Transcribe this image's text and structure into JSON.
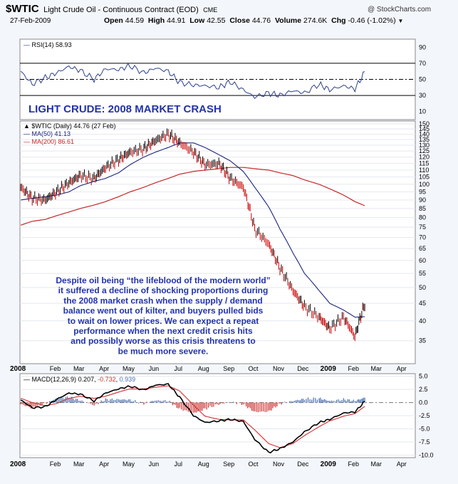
{
  "header": {
    "symbol": "$WTIC",
    "title": "Light Crude Oil - Continuous Contract (EOD)",
    "exchange": "CME",
    "source": "@ StockCharts.com",
    "date": "27-Feb-2009",
    "ohlc": {
      "open_label": "Open",
      "open": "44.59",
      "high_label": "High",
      "high": "44.91",
      "low_label": "Low",
      "low": "42.55",
      "close_label": "Close",
      "close": "44.76",
      "volume_label": "Volume",
      "volume": "274.6K",
      "chg_label": "Chg",
      "chg": "-0.46 (-1.02%)"
    }
  },
  "rsi_panel": {
    "legend_label": "RSI(14)",
    "legend_value": "58.93",
    "headline": "LIGHT CRUDE: 2008 MARKET CRASH",
    "headline_color": "#2233aa"
  },
  "price_panel": {
    "legend_price": "$WTIC (Daily) 44.76 (27 Feb)",
    "legend_ma50": "MA(50) 41.13",
    "legend_ma200": "MA(200) 86.61",
    "annotation_lines": [
      "Despite oil being “the lifeblood of the modern world”",
      "it suffered a decline of shocking proportions during",
      "the 2008 market crash when the supply / demand",
      "balance went out of kilter, and buyers pulled bids",
      "to wait on lower prices. We can expect a repeat",
      "performance when the next credit crisis hits",
      "and possibly worse as this crisis threatens to",
      "be much more severe."
    ],
    "annotation_color": "#2233aa"
  },
  "macd_panel": {
    "legend_label": "MACD(12,26,9)",
    "legend_values": [
      "0.207",
      "-0.732",
      "0.939"
    ]
  },
  "x_axis": {
    "labels": [
      "2008",
      "Feb",
      "Mar",
      "Apr",
      "May",
      "Jun",
      "Jul",
      "Aug",
      "Sep",
      "Oct",
      "Nov",
      "Dec",
      "2009",
      "Feb",
      "Mar",
      "Apr"
    ]
  },
  "colors": {
    "price": "#000000",
    "down_bar": "#cc0000",
    "ma50": "#1a237e",
    "ma200": "#c62828",
    "rsi": "#2b3f8f",
    "macd": "#000000",
    "signal": "#d32f2f",
    "histogram_pos": "#4a6fb5",
    "histogram_neg": "#cc3333",
    "annotation": "#2233aa"
  },
  "chart_data": [
    {
      "type": "line",
      "title": "RSI(14) 58.93",
      "ylim": [
        0,
        100
      ],
      "yticks": [
        10,
        30,
        50,
        70,
        90
      ],
      "reference_lines": [
        30,
        50,
        70
      ],
      "x": [
        "2008-01-02",
        "2008-01-16",
        "2008-02-01",
        "2008-02-15",
        "2008-03-01",
        "2008-03-15",
        "2008-04-01",
        "2008-04-15",
        "2008-05-01",
        "2008-05-15",
        "2008-06-01",
        "2008-06-15",
        "2008-07-01",
        "2008-07-15",
        "2008-08-01",
        "2008-08-15",
        "2008-09-01",
        "2008-09-15",
        "2008-10-01",
        "2008-10-15",
        "2008-11-01",
        "2008-11-15",
        "2008-12-01",
        "2008-12-15",
        "2009-01-02",
        "2009-01-15",
        "2009-02-01",
        "2009-02-15",
        "2009-02-27"
      ],
      "series": [
        {
          "name": "RSI(14)",
          "values": [
            60,
            44,
            52,
            58,
            66,
            61,
            50,
            63,
            62,
            67,
            58,
            64,
            60,
            46,
            43,
            42,
            40,
            47,
            37,
            28,
            33,
            30,
            36,
            33,
            44,
            37,
            42,
            38,
            59
          ]
        }
      ]
    },
    {
      "type": "line",
      "title": "$WTIC (Daily) 44.76 (27 Feb)",
      "ylim": [
        30,
        150
      ],
      "yticks": [
        35,
        40,
        45,
        50,
        55,
        60,
        65,
        70,
        75,
        80,
        85,
        90,
        95,
        100,
        105,
        110,
        115,
        120,
        125,
        130,
        135,
        140,
        145,
        150
      ],
      "log_scale": true,
      "x": [
        "2008-01-02",
        "2008-01-16",
        "2008-02-01",
        "2008-02-15",
        "2008-03-01",
        "2008-03-15",
        "2008-04-01",
        "2008-04-15",
        "2008-05-01",
        "2008-05-15",
        "2008-06-01",
        "2008-06-15",
        "2008-07-01",
        "2008-07-15",
        "2008-08-01",
        "2008-08-15",
        "2008-09-01",
        "2008-09-15",
        "2008-10-01",
        "2008-10-15",
        "2008-11-01",
        "2008-11-15",
        "2008-12-01",
        "2008-12-15",
        "2009-01-02",
        "2009-01-15",
        "2009-02-01",
        "2009-02-15",
        "2009-02-27"
      ],
      "series": [
        {
          "name": "$WTIC",
          "values": [
            98,
            91,
            90,
            95,
            101,
            106,
            104,
            112,
            118,
            124,
            127,
            134,
            140,
            132,
            124,
            114,
            115,
            104,
            98,
            74,
            67,
            57,
            49,
            44,
            41,
            38,
            41,
            36,
            44.76
          ]
        },
        {
          "name": "MA(50)",
          "values": [
            90,
            91,
            92,
            93,
            95,
            99,
            102,
            104,
            108,
            114,
            120,
            124,
            128,
            132,
            132,
            128,
            122,
            117,
            109,
            98,
            86,
            74,
            63,
            55,
            49,
            45,
            43,
            41,
            41.13
          ]
        },
        {
          "name": "MA(200)",
          "values": [
            76,
            78,
            79,
            81,
            83,
            85,
            87,
            89,
            92,
            95,
            98,
            101,
            104,
            107,
            109,
            110,
            111,
            112,
            112,
            111,
            110,
            108,
            106,
            103,
            100,
            97,
            93,
            89,
            86.61
          ]
        }
      ]
    },
    {
      "type": "line",
      "title": "MACD(12,26,9) 0.207, -0.732, 0.939",
      "ylim": [
        -10.5,
        5.5
      ],
      "yticks": [
        5.0,
        2.5,
        0.0,
        -2.5,
        -5.0,
        -7.5,
        -10.0
      ],
      "x": [
        "2008-01-02",
        "2008-01-16",
        "2008-02-01",
        "2008-02-15",
        "2008-03-01",
        "2008-03-15",
        "2008-04-01",
        "2008-04-15",
        "2008-05-01",
        "2008-05-15",
        "2008-06-01",
        "2008-06-15",
        "2008-07-01",
        "2008-07-15",
        "2008-08-01",
        "2008-08-15",
        "2008-09-01",
        "2008-09-15",
        "2008-10-01",
        "2008-10-15",
        "2008-11-01",
        "2008-11-15",
        "2008-12-01",
        "2008-12-15",
        "2009-01-02",
        "2009-01-15",
        "2009-02-01",
        "2009-02-15",
        "2009-02-27"
      ],
      "series": [
        {
          "name": "MACD",
          "values": [
            0.5,
            -1.0,
            -0.8,
            0.6,
            1.8,
            1.6,
            0.3,
            1.8,
            2.6,
            3.1,
            2.4,
            3.3,
            3.5,
            1.0,
            -2.5,
            -3.8,
            -3.5,
            -3.2,
            -3.6,
            -7.0,
            -9.5,
            -8.8,
            -7.5,
            -5.6,
            -3.8,
            -3.2,
            -2.0,
            -1.8,
            0.207
          ]
        },
        {
          "name": "Signal",
          "values": [
            0.8,
            0.0,
            -0.6,
            -0.2,
            0.8,
            1.2,
            0.8,
            1.2,
            2.0,
            2.6,
            2.6,
            2.9,
            3.2,
            2.2,
            -0.5,
            -2.6,
            -3.2,
            -3.3,
            -3.3,
            -5.2,
            -7.8,
            -8.6,
            -7.8,
            -6.3,
            -4.6,
            -3.5,
            -2.6,
            -2.1,
            -0.732
          ]
        },
        {
          "name": "Histogram",
          "values": [
            -0.3,
            -1.0,
            -0.2,
            0.8,
            1.0,
            0.4,
            -0.5,
            0.6,
            0.6,
            0.5,
            -0.2,
            0.4,
            0.3,
            -1.2,
            -2.0,
            -1.2,
            -0.3,
            0.1,
            -0.3,
            -1.8,
            -1.7,
            -0.2,
            0.3,
            0.7,
            0.8,
            0.3,
            0.6,
            0.3,
            0.939
          ]
        }
      ]
    }
  ]
}
